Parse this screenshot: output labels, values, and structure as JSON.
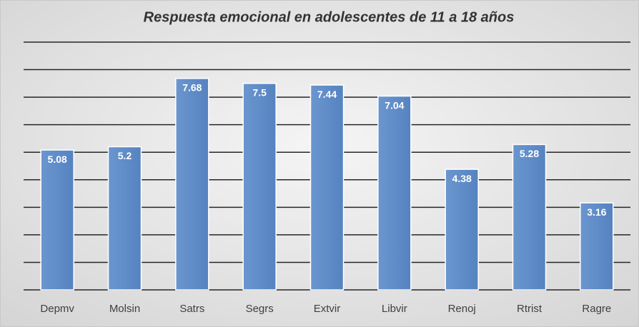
{
  "chart_data": {
    "type": "bar",
    "title": "Respuesta emocional en adolescentes de 11 a 18 años",
    "categories": [
      "Depmv",
      "Molsin",
      "Satrs",
      "Segrs",
      "Extvir",
      "Libvir",
      "Renoj",
      "Rtrist",
      "Ragre"
    ],
    "values": [
      5.08,
      5.2,
      7.68,
      7.5,
      7.44,
      7.04,
      4.38,
      5.28,
      3.16
    ],
    "color": "#5b8ac6",
    "ylim": [
      0,
      9
    ],
    "yticks": [
      0,
      1,
      2,
      3,
      4,
      5,
      6,
      7,
      8,
      9
    ],
    "grid": true
  }
}
